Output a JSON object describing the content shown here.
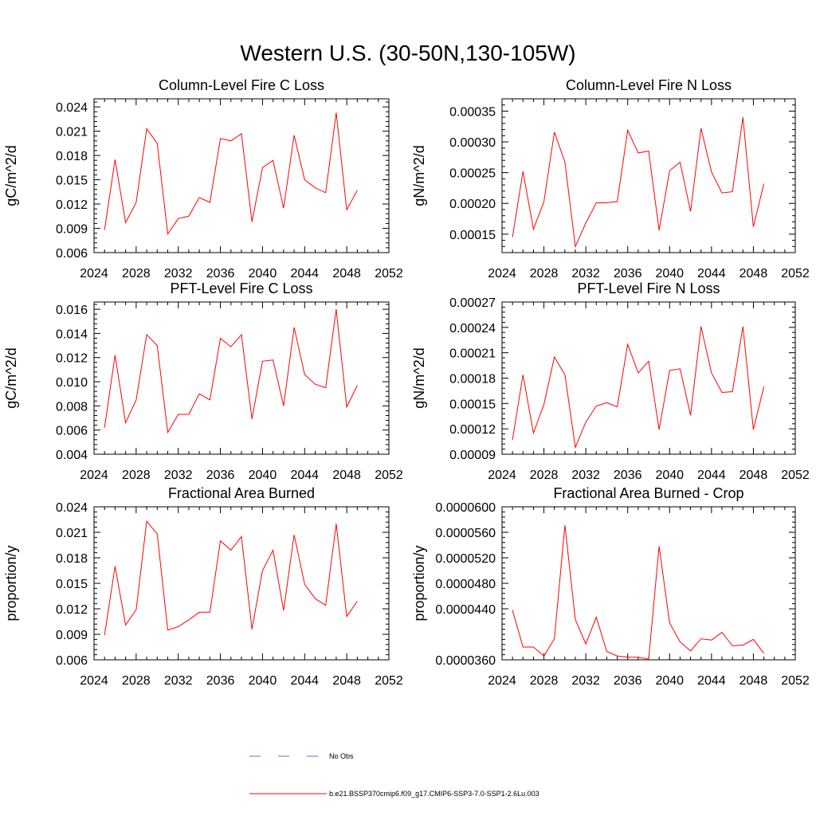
{
  "figure_title": "Western U.S. (30-50N,130-105W)",
  "legend": {
    "items": [
      {
        "label": "No Obs",
        "color": "#6b6bcf",
        "dash": "dashed"
      },
      {
        "label": "b.e21.BSSP370cmip6.f09_g17.CMIP6-SSP3-7.0-SSP1-2.6Lu.003",
        "color": "#ff0000",
        "dash": "solid"
      }
    ]
  },
  "chart_data": [
    {
      "type": "line",
      "title": "Column-Level Fire C Loss",
      "ylabel": "gC/m^2/d",
      "xlim": [
        2024,
        2052
      ],
      "ylim": [
        0.006,
        0.025
      ],
      "xticks": [
        2024,
        2028,
        2032,
        2036,
        2040,
        2044,
        2048,
        2052
      ],
      "yticks": [
        0.006,
        0.009,
        0.012,
        0.015,
        0.018,
        0.021,
        0.024
      ],
      "ytick_labels": [
        "0.006",
        "0.009",
        "0.012",
        "0.015",
        "0.018",
        "0.021",
        "0.024"
      ],
      "x": [
        2025,
        2026,
        2027,
        2028,
        2029,
        2030,
        2031,
        2032,
        2033,
        2034,
        2035,
        2036,
        2037,
        2038,
        2039,
        2040,
        2041,
        2042,
        2043,
        2044,
        2045,
        2046,
        2047,
        2048,
        2049
      ],
      "series": [
        {
          "color": "#ff0000",
          "values": [
            0.0088,
            0.0175,
            0.0097,
            0.0122,
            0.0213,
            0.0195,
            0.0083,
            0.0102,
            0.0105,
            0.0128,
            0.0122,
            0.0201,
            0.0198,
            0.0207,
            0.0098,
            0.0165,
            0.0174,
            0.0115,
            0.0205,
            0.015,
            0.014,
            0.0134,
            0.0233,
            0.0113,
            0.0137
          ]
        }
      ]
    },
    {
      "type": "line",
      "title": "Column-Level Fire N Loss",
      "ylabel": "gN/m^2/d",
      "xlim": [
        2024,
        2052
      ],
      "ylim": [
        0.00012,
        0.00037
      ],
      "xticks": [
        2024,
        2028,
        2032,
        2036,
        2040,
        2044,
        2048,
        2052
      ],
      "yticks": [
        0.00015,
        0.0002,
        0.00025,
        0.0003,
        0.00035
      ],
      "ytick_labels": [
        "0.00015",
        "0.00020",
        "0.00025",
        "0.00030",
        "0.00035"
      ],
      "x": [
        2025,
        2026,
        2027,
        2028,
        2029,
        2030,
        2031,
        2032,
        2033,
        2034,
        2035,
        2036,
        2037,
        2038,
        2039,
        2040,
        2041,
        2042,
        2043,
        2044,
        2045,
        2046,
        2047,
        2048,
        2049
      ],
      "series": [
        {
          "color": "#ff0000",
          "values": [
            0.000145,
            0.000252,
            0.000158,
            0.000203,
            0.000316,
            0.000267,
            0.00013,
            0.000168,
            0.000201,
            0.000201,
            0.000203,
            0.000319,
            0.000282,
            0.000285,
            0.000156,
            0.000253,
            0.000267,
            0.000187,
            0.000322,
            0.000251,
            0.000217,
            0.000219,
            0.00034,
            0.000162,
            0.000232
          ]
        }
      ]
    },
    {
      "type": "line",
      "title": "PFT-Level Fire C Loss",
      "ylabel": "gC/m^2/d",
      "xlim": [
        2024,
        2052
      ],
      "ylim": [
        0.004,
        0.0166
      ],
      "xticks": [
        2024,
        2028,
        2032,
        2036,
        2040,
        2044,
        2048,
        2052
      ],
      "yticks": [
        0.004,
        0.006,
        0.008,
        0.01,
        0.012,
        0.014,
        0.016
      ],
      "ytick_labels": [
        "0.004",
        "0.006",
        "0.008",
        "0.010",
        "0.012",
        "0.014",
        "0.016"
      ],
      "x": [
        2025,
        2026,
        2027,
        2028,
        2029,
        2030,
        2031,
        2032,
        2033,
        2034,
        2035,
        2036,
        2037,
        2038,
        2039,
        2040,
        2041,
        2042,
        2043,
        2044,
        2045,
        2046,
        2047,
        2048,
        2049
      ],
      "series": [
        {
          "color": "#ff0000",
          "values": [
            0.0062,
            0.0122,
            0.0066,
            0.0085,
            0.0139,
            0.013,
            0.0058,
            0.0073,
            0.0073,
            0.009,
            0.0085,
            0.0136,
            0.0129,
            0.0139,
            0.0069,
            0.0117,
            0.0118,
            0.008,
            0.0145,
            0.0106,
            0.0098,
            0.0095,
            0.016,
            0.0079,
            0.0097
          ]
        }
      ]
    },
    {
      "type": "line",
      "title": "PFT-Level Fire N Loss",
      "ylabel": "gN/m^2/d",
      "xlim": [
        2024,
        2052
      ],
      "ylim": [
        9e-05,
        0.00027
      ],
      "xticks": [
        2024,
        2028,
        2032,
        2036,
        2040,
        2044,
        2048,
        2052
      ],
      "yticks": [
        9e-05,
        0.00012,
        0.00015,
        0.00018,
        0.00021,
        0.00024,
        0.00027
      ],
      "ytick_labels": [
        "0.00009",
        "0.00012",
        "0.00015",
        "0.00018",
        "0.00021",
        "0.00024",
        "0.00027"
      ],
      "x": [
        2025,
        2026,
        2027,
        2028,
        2029,
        2030,
        2031,
        2032,
        2033,
        2034,
        2035,
        2036,
        2037,
        2038,
        2039,
        2040,
        2041,
        2042,
        2043,
        2044,
        2045,
        2046,
        2047,
        2048,
        2049
      ],
      "series": [
        {
          "color": "#ff0000",
          "values": [
            0.000107,
            0.000184,
            0.000115,
            0.000149,
            0.000205,
            0.000184,
            9.8e-05,
            0.000128,
            0.000147,
            0.000151,
            0.000146,
            0.00022,
            0.000186,
            0.0002,
            0.000119,
            0.000189,
            0.000191,
            0.000136,
            0.000241,
            0.000186,
            0.000163,
            0.000164,
            0.000241,
            0.000119,
            0.00017
          ]
        }
      ]
    },
    {
      "type": "line",
      "title": "Fractional Area Burned",
      "ylabel": "proportion/y",
      "xlim": [
        2024,
        2052
      ],
      "ylim": [
        0.006,
        0.024
      ],
      "xticks": [
        2024,
        2028,
        2032,
        2036,
        2040,
        2044,
        2048,
        2052
      ],
      "yticks": [
        0.006,
        0.009,
        0.012,
        0.015,
        0.018,
        0.021,
        0.024
      ],
      "ytick_labels": [
        "0.006",
        "0.009",
        "0.012",
        "0.015",
        "0.018",
        "0.021",
        "0.024"
      ],
      "x": [
        2025,
        2026,
        2027,
        2028,
        2029,
        2030,
        2031,
        2032,
        2033,
        2034,
        2035,
        2036,
        2037,
        2038,
        2039,
        2040,
        2041,
        2042,
        2043,
        2044,
        2045,
        2046,
        2047,
        2048,
        2049
      ],
      "series": [
        {
          "color": "#ff0000",
          "values": [
            0.0089,
            0.017,
            0.0101,
            0.0119,
            0.0223,
            0.0208,
            0.0095,
            0.0099,
            0.0107,
            0.0116,
            0.0116,
            0.02,
            0.0189,
            0.0205,
            0.0096,
            0.0165,
            0.0189,
            0.0118,
            0.0207,
            0.0149,
            0.0132,
            0.0124,
            0.022,
            0.0111,
            0.0129
          ]
        }
      ]
    },
    {
      "type": "line",
      "title": "Fractional Area Burned - Crop",
      "ylabel": "proportion/y",
      "xlim": [
        2024,
        2052
      ],
      "ylim": [
        3.6e-05,
        6e-05
      ],
      "xticks": [
        2024,
        2028,
        2032,
        2036,
        2040,
        2044,
        2048,
        2052
      ],
      "yticks": [
        3.6e-05,
        4.4e-05,
        4.8e-05,
        5.2e-05,
        5.6e-05,
        6e-05
      ],
      "ytick_labels": [
        "0.0000360",
        "0.0000440",
        "0.0000480",
        "0.0000520",
        "0.0000560",
        "0.0000600"
      ],
      "x": [
        2025,
        2026,
        2027,
        2028,
        2029,
        2030,
        2031,
        2032,
        2033,
        2034,
        2035,
        2036,
        2037,
        2038,
        2039,
        2040,
        2041,
        2042,
        2043,
        2044,
        2045,
        2046,
        2047,
        2048,
        2049
      ],
      "series": [
        {
          "color": "#ff0000",
          "values": [
            4.38e-05,
            3.8e-05,
            3.8e-05,
            3.66e-05,
            3.93e-05,
            5.71e-05,
            4.23e-05,
            3.85e-05,
            4.27e-05,
            3.73e-05,
            3.66e-05,
            3.64e-05,
            3.64e-05,
            3.61e-05,
            5.38e-05,
            4.18e-05,
            3.88e-05,
            3.74e-05,
            3.93e-05,
            3.91e-05,
            4.03e-05,
            3.82e-05,
            3.83e-05,
            3.92e-05,
            3.7e-05
          ]
        }
      ]
    }
  ]
}
